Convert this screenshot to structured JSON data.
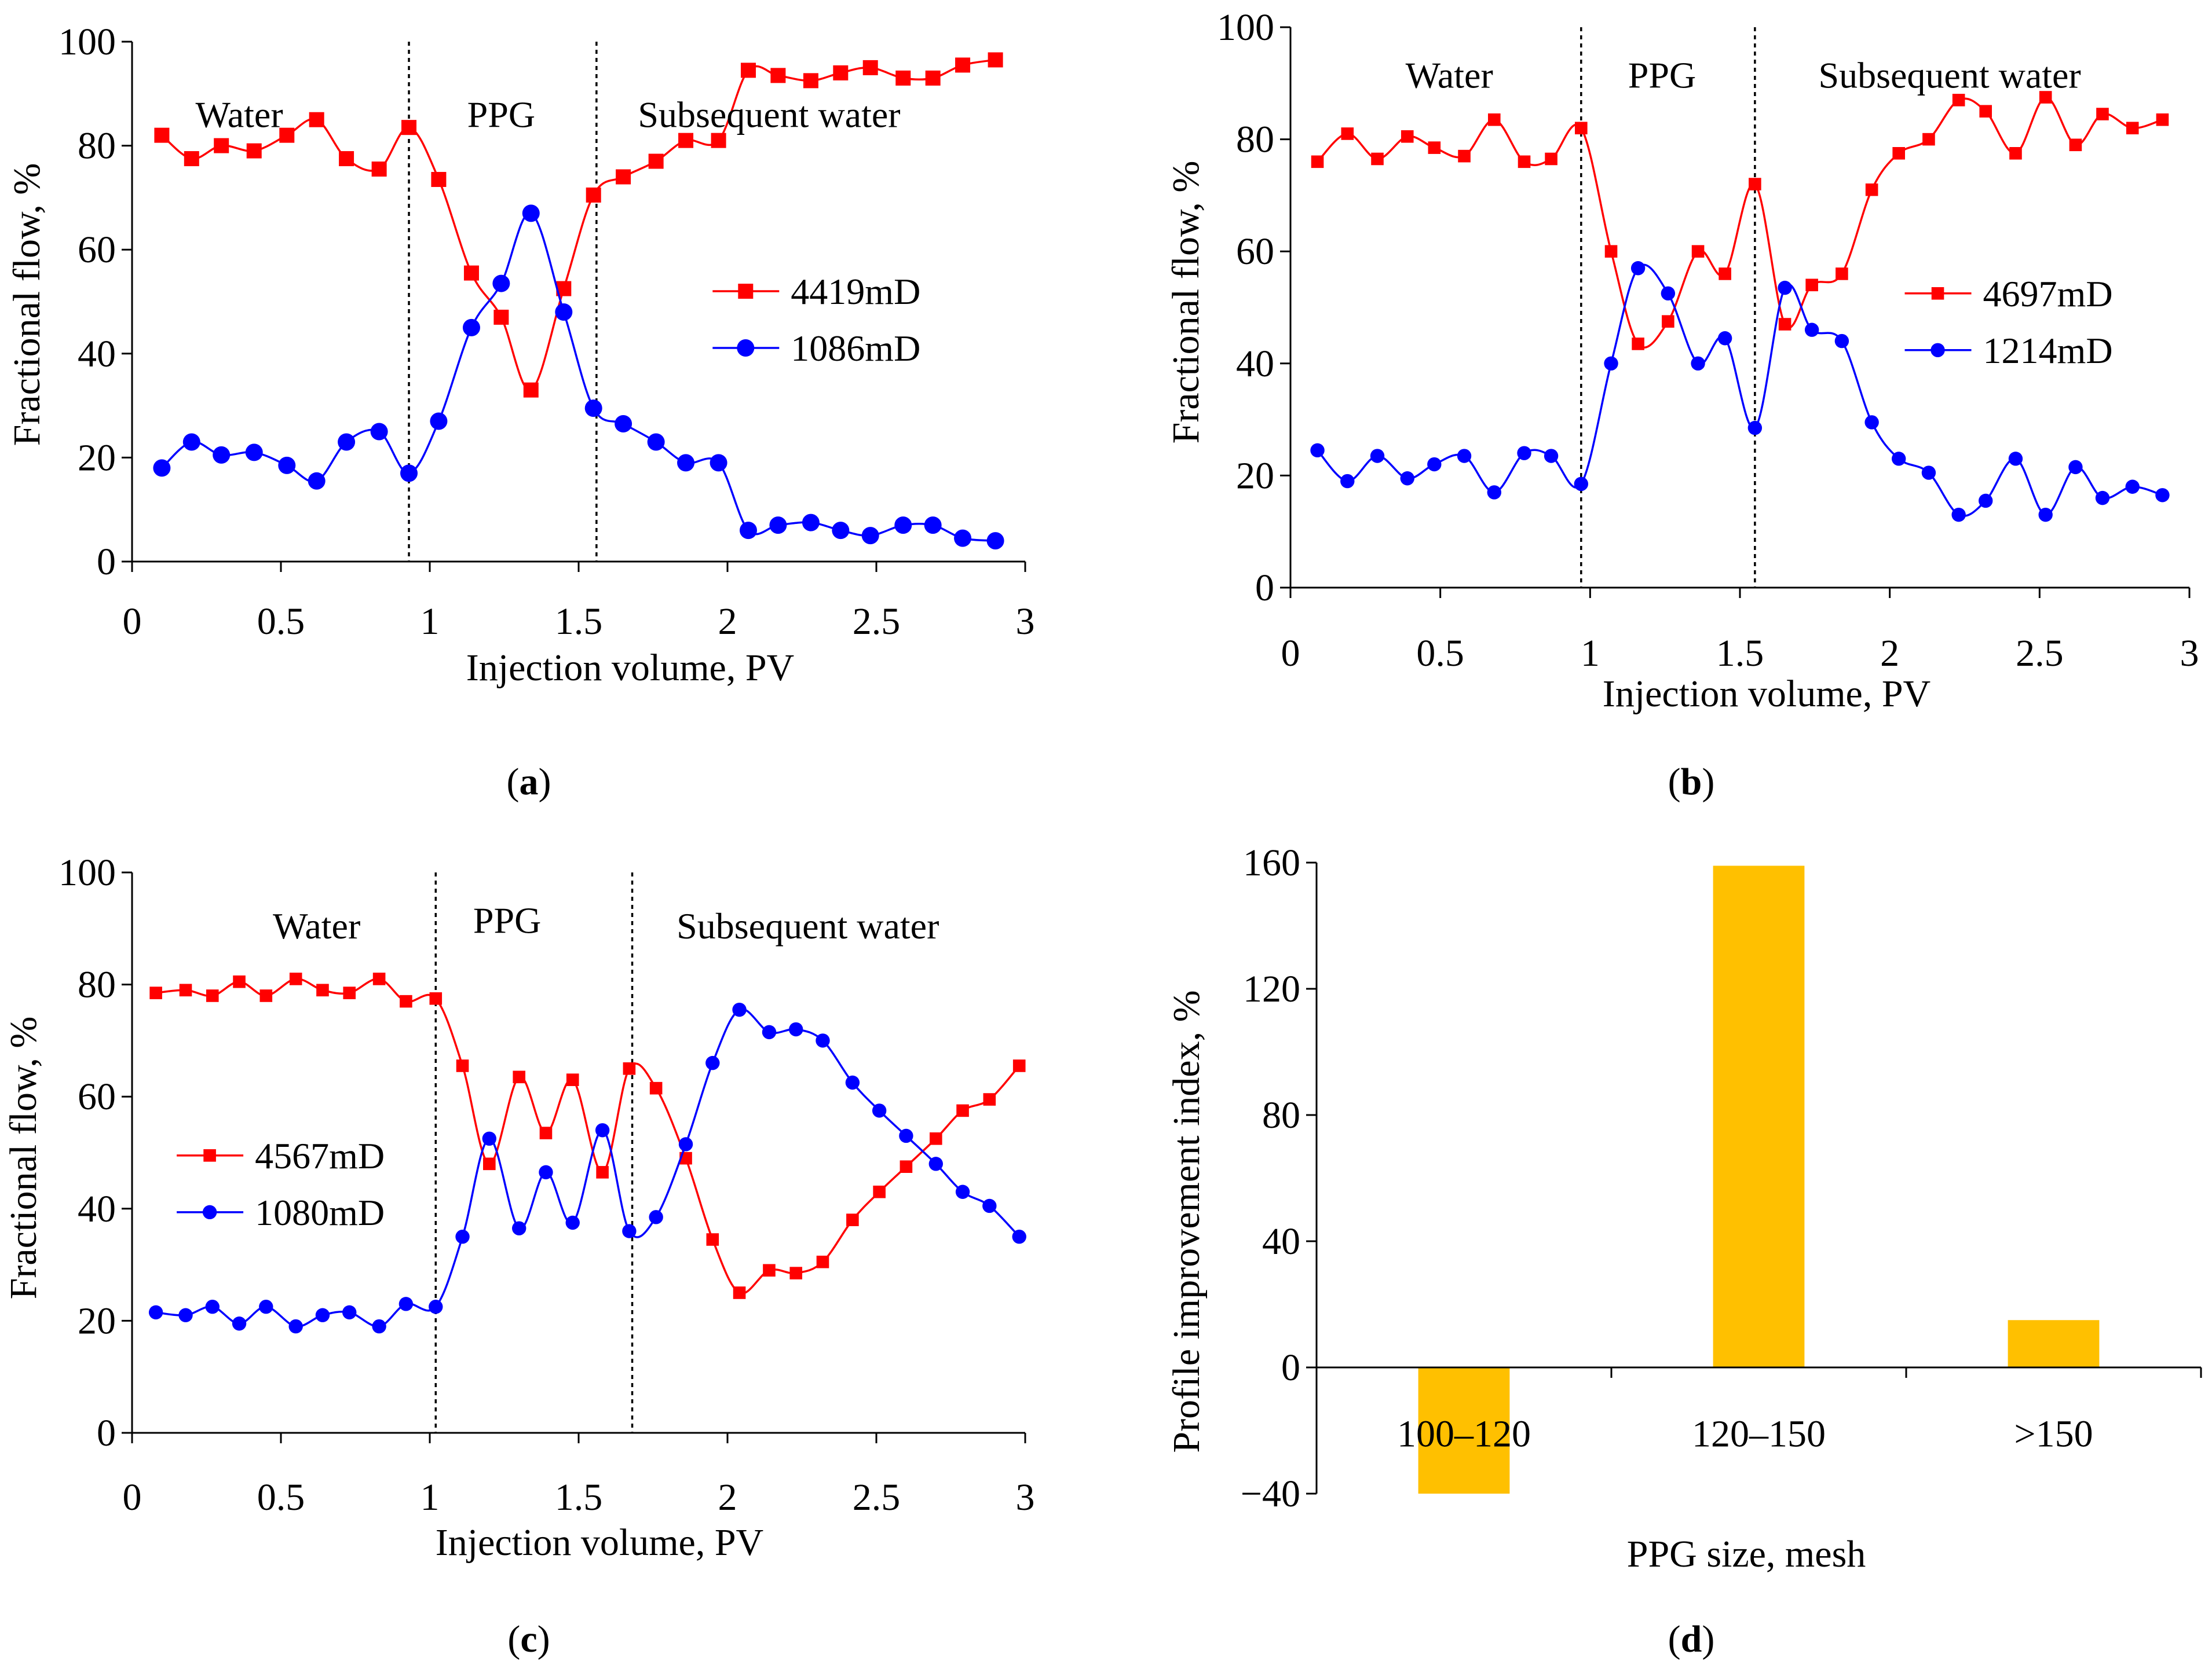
{
  "captions": [
    "a",
    "b",
    "c",
    "d"
  ],
  "colors": {
    "red": "#ff0000",
    "blue": "#0000ff",
    "bar": "#ffc000",
    "axis": "#000000"
  },
  "chart_data": [
    {
      "id": "a",
      "type": "line",
      "xlabel": "Injection volume, PV",
      "ylabel": "Fractional flow, %",
      "xlim": [
        0,
        3
      ],
      "ylim": [
        0,
        100
      ],
      "xticks": [
        0,
        0.5,
        1,
        1.5,
        2,
        2.5,
        3
      ],
      "xtick_labels": [
        "0",
        "0.5",
        "1",
        "1.5",
        "2",
        "2.5",
        "3"
      ],
      "yticks": [
        0,
        20,
        40,
        60,
        80,
        100
      ],
      "ytick_labels": [
        "0",
        "20",
        "40",
        "60",
        "80",
        "100"
      ],
      "dividers": [
        0.93,
        1.56
      ],
      "regions": [
        {
          "label": "Water",
          "x": 0.36,
          "y": 86
        },
        {
          "label": "PPG",
          "x": 1.24,
          "y": 86
        },
        {
          "label": "Subsequent water",
          "x": 2.14,
          "y": 86
        }
      ],
      "legend": {
        "x": 1.95,
        "y": 52,
        "marker_size": 1.0
      },
      "series": [
        {
          "name": "4419mD",
          "color": "#ff0000",
          "marker": "square",
          "x": [
            0.1,
            0.2,
            0.3,
            0.41,
            0.52,
            0.62,
            0.72,
            0.83,
            0.93,
            1.03,
            1.14,
            1.24,
            1.34,
            1.45,
            1.55,
            1.65,
            1.76,
            1.86,
            1.97,
            2.07,
            2.17,
            2.28,
            2.38,
            2.48,
            2.59,
            2.69,
            2.79,
            2.9
          ],
          "y": [
            82,
            77.5,
            80,
            79,
            82,
            85,
            77.5,
            75.5,
            83.5,
            73.5,
            55.5,
            47,
            33,
            52.5,
            70.5,
            74,
            77,
            81,
            81,
            94.5,
            93.5,
            92.5,
            94,
            95,
            93,
            93,
            95.5,
            96.5
          ]
        },
        {
          "name": "1086mD",
          "color": "#0000ff",
          "marker": "circle",
          "x": [
            0.1,
            0.2,
            0.3,
            0.41,
            0.52,
            0.62,
            0.72,
            0.83,
            0.93,
            1.03,
            1.14,
            1.24,
            1.34,
            1.45,
            1.55,
            1.65,
            1.76,
            1.86,
            1.97,
            2.07,
            2.17,
            2.28,
            2.38,
            2.48,
            2.59,
            2.69,
            2.79,
            2.9
          ],
          "y": [
            18,
            23,
            20.5,
            21,
            18.5,
            15.5,
            23,
            25,
            17,
            27,
            45,
            53.5,
            67,
            48,
            29.5,
            26.5,
            23,
            19,
            19,
            6,
            7,
            7.5,
            6,
            5,
            7,
            7,
            4.5,
            4
          ]
        }
      ]
    },
    {
      "id": "b",
      "type": "line",
      "xlabel": "Injection volume, PV",
      "ylabel": "Fractional flow,  %",
      "xlim": [
        0,
        3
      ],
      "ylim": [
        0,
        100
      ],
      "xticks": [
        0,
        0.5,
        1,
        1.5,
        2,
        2.5,
        3
      ],
      "xtick_labels": [
        "0",
        "0.5",
        "1",
        "1.5",
        "2",
        "2.5",
        "3"
      ],
      "yticks": [
        0,
        20,
        40,
        60,
        80,
        100
      ],
      "ytick_labels": [
        "0",
        "20",
        "40",
        "60",
        "80",
        "100"
      ],
      "dividers": [
        0.97,
        1.55
      ],
      "regions": [
        {
          "label": "Water",
          "x": 0.53,
          "y": 91.5
        },
        {
          "label": "PPG",
          "x": 1.24,
          "y": 91.5
        },
        {
          "label": "Subsequent water",
          "x": 2.2,
          "y": 91.5
        }
      ],
      "legend": {
        "x": 2.05,
        "y": 52.5,
        "marker_size": 0.8
      },
      "series": [
        {
          "name": "4697mD",
          "color": "#ff0000",
          "marker": "square",
          "x": [
            0.09,
            0.19,
            0.29,
            0.39,
            0.48,
            0.58,
            0.68,
            0.78,
            0.87,
            0.97,
            1.07,
            1.16,
            1.26,
            1.36,
            1.45,
            1.55,
            1.65,
            1.74,
            1.84,
            1.94,
            2.03,
            2.13,
            2.23,
            2.32,
            2.42,
            2.52,
            2.62,
            2.71,
            2.81,
            2.91
          ],
          "y": [
            76,
            81,
            76.5,
            80.5,
            78.5,
            77,
            83.5,
            76,
            76.5,
            82,
            60,
            43.5,
            47.5,
            60,
            56,
            72,
            47,
            54,
            56,
            71,
            77.5,
            80,
            87,
            85,
            77.5,
            87.5,
            79,
            84.5,
            82,
            83.5
          ]
        },
        {
          "name": "1214mD",
          "color": "#0000ff",
          "marker": "circle",
          "x": [
            0.09,
            0.19,
            0.29,
            0.39,
            0.48,
            0.58,
            0.68,
            0.78,
            0.87,
            0.97,
            1.07,
            1.16,
            1.26,
            1.36,
            1.45,
            1.55,
            1.65,
            1.74,
            1.84,
            1.94,
            2.03,
            2.13,
            2.23,
            2.32,
            2.42,
            2.52,
            2.62,
            2.71,
            2.81,
            2.91
          ],
          "y": [
            24.5,
            19,
            23.5,
            19.5,
            22,
            23.5,
            17,
            24,
            23.5,
            18.5,
            40,
            57,
            52.5,
            40,
            44.5,
            28.5,
            53.5,
            46,
            44,
            29.5,
            23,
            20.5,
            13,
            15.5,
            23,
            13,
            21.5,
            16,
            18,
            16.5
          ]
        }
      ]
    },
    {
      "id": "c",
      "type": "line",
      "xlabel": "Injection volume, PV",
      "ylabel": "Fractional flow, %",
      "xlim": [
        0,
        3
      ],
      "ylim": [
        0,
        100
      ],
      "xticks": [
        0,
        0.5,
        1,
        1.5,
        2,
        2.5,
        3
      ],
      "xtick_labels": [
        "0",
        "0.5",
        "1",
        "1.5",
        "2",
        "2.5",
        "3"
      ],
      "yticks": [
        0,
        20,
        40,
        60,
        80,
        100
      ],
      "ytick_labels": [
        "0",
        "20",
        "40",
        "60",
        "80",
        "100"
      ],
      "dividers": [
        1.02,
        1.68
      ],
      "regions": [
        {
          "label": "Water",
          "x": 0.62,
          "y": 90.5
        },
        {
          "label": "PPG",
          "x": 1.26,
          "y": 91.5
        },
        {
          "label": "Subsequent water",
          "x": 2.27,
          "y": 90.5
        }
      ],
      "legend": {
        "x": 0.15,
        "y": 49.5,
        "marker_size": 0.8
      },
      "series": [
        {
          "name": "4567mD",
          "color": "#ff0000",
          "marker": "square",
          "x": [
            0.08,
            0.18,
            0.27,
            0.36,
            0.45,
            0.55,
            0.64,
            0.73,
            0.83,
            0.92,
            1.02,
            1.11,
            1.2,
            1.3,
            1.39,
            1.48,
            1.58,
            1.67,
            1.76,
            1.86,
            1.95,
            2.04,
            2.14,
            2.23,
            2.32,
            2.42,
            2.51,
            2.6,
            2.7,
            2.79,
            2.88,
            2.98
          ],
          "y": [
            78.5,
            79,
            78,
            80.5,
            78,
            81,
            79,
            78.5,
            81,
            77,
            77.5,
            65.5,
            48,
            63.5,
            53.5,
            63,
            46.5,
            65,
            61.5,
            49,
            34.5,
            25,
            29,
            28.5,
            30.5,
            38,
            43,
            47.5,
            52.5,
            57.5,
            59.5,
            65.5
          ]
        },
        {
          "name": "1080mD",
          "color": "#0000ff",
          "marker": "circle",
          "x": [
            0.08,
            0.18,
            0.27,
            0.36,
            0.45,
            0.55,
            0.64,
            0.73,
            0.83,
            0.92,
            1.02,
            1.11,
            1.2,
            1.3,
            1.39,
            1.48,
            1.58,
            1.67,
            1.76,
            1.86,
            1.95,
            2.04,
            2.14,
            2.23,
            2.32,
            2.42,
            2.51,
            2.6,
            2.7,
            2.79,
            2.88,
            2.98
          ],
          "y": [
            21.5,
            21,
            22.5,
            19.5,
            22.5,
            19,
            21,
            21.5,
            19,
            23,
            22.5,
            35,
            52.5,
            36.5,
            46.5,
            37.5,
            54,
            36,
            38.5,
            51.5,
            66,
            75.5,
            71.5,
            72,
            70,
            62.5,
            57.5,
            53,
            48,
            43,
            40.5,
            35
          ]
        }
      ]
    },
    {
      "id": "d",
      "type": "bar",
      "xlabel": "PPG size, mesh",
      "ylabel": "Profile improvement index, %",
      "categories": [
        "100–120",
        "120–150",
        ">150"
      ],
      "values": [
        -40,
        159,
        15
      ],
      "ylim": [
        -40,
        160
      ],
      "yticks": [
        -40,
        0,
        40,
        80,
        120,
        160
      ],
      "ytick_labels": [
        "−40",
        "0",
        "40",
        "80",
        "120",
        "160"
      ],
      "bar_color": "#ffc000",
      "category_label_y": -21
    }
  ]
}
